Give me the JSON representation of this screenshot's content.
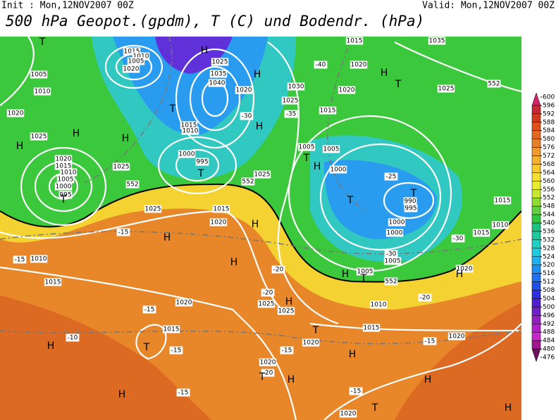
{
  "header": {
    "init": "Init : Mon,12NOV2007 00Z",
    "valid": "Valid: Mon,12NOV2007 00Z",
    "title": "500 hPa Geopot.(gpdm), T (C) und Bodendr. (hPa)"
  },
  "map_labels": [
    "T",
    "H",
    "1015",
    "1010",
    "1005",
    "1020",
    "1025",
    "1035",
    "1040",
    "1005",
    "1010",
    "1020",
    "1025",
    "H",
    "H",
    "1030",
    "1020",
    "H",
    "T",
    "1025",
    "1035",
    "1015",
    "1020",
    "-40",
    "1025",
    "1015",
    "-35",
    "H",
    "-30",
    "1020",
    "H",
    "T",
    "1015",
    "1010",
    "1000",
    "995",
    "T",
    "1025",
    "1020",
    "1015",
    "1010",
    "1005",
    "1000",
    "995",
    "T",
    "H",
    "1025",
    "1015",
    "1020",
    "H",
    "H",
    "1025",
    "1005",
    "1005",
    "T",
    "1000",
    "H",
    "T",
    "-25",
    "T",
    "990",
    "995",
    "1000",
    "1000",
    "-30",
    "1005",
    "1015",
    "1010",
    "1015",
    "-30",
    "1020",
    "H",
    "-15",
    "1010",
    "1015",
    "-15",
    "H",
    "-20",
    "-20",
    "1025",
    "1025",
    "H",
    "-15",
    "1020",
    "1015",
    "T",
    "-15",
    "-10",
    "H",
    "1020",
    "T",
    "1015",
    "-15",
    "H",
    "1020",
    "-20",
    "T",
    "H",
    "-15",
    "1020",
    "H",
    "-15",
    "H",
    "-15",
    "T",
    "1020",
    "H",
    "1010",
    "-20",
    "H",
    "1005",
    "T",
    "552",
    "552",
    "552",
    "552"
  ],
  "colorbar": {
    "ticks": [
      600,
      596,
      592,
      588,
      584,
      580,
      576,
      572,
      568,
      564,
      560,
      556,
      552,
      548,
      544,
      540,
      536,
      532,
      528,
      524,
      520,
      516,
      512,
      508,
      504,
      500,
      496,
      492,
      488,
      484,
      480,
      476
    ],
    "colors": [
      "#d0246a",
      "#c42a36",
      "#d23a1a",
      "#e0501a",
      "#e06a20",
      "#e8802a",
      "#f09a30",
      "#f4b030",
      "#f8c830",
      "#f4e030",
      "#e8ec30",
      "#c8e830",
      "#90dc30",
      "#60d040",
      "#30c840",
      "#20c080",
      "#20c8a0",
      "#20d0c0",
      "#20c8e0",
      "#20b0f0",
      "#2090f0",
      "#2070f0",
      "#2050e8",
      "#3030e0",
      "#5020d0",
      "#7020c8",
      "#9020c0",
      "#b020c8",
      "#c828c8",
      "#a01890",
      "#701060"
    ]
  }
}
